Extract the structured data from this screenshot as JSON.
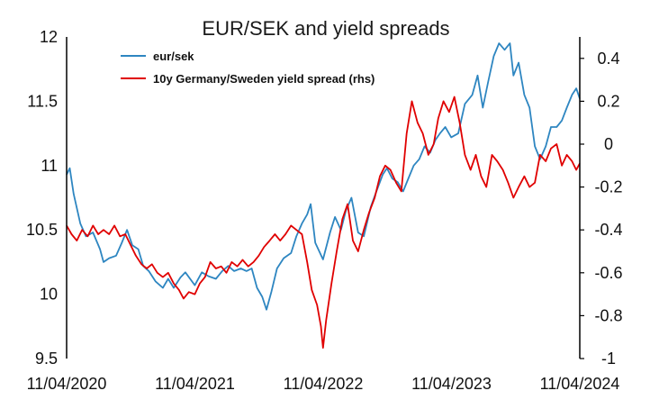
{
  "chart_data": {
    "type": "line",
    "title": "EUR/SEK and yield spreads",
    "xlabel": "",
    "ylabel": "",
    "x_ticks": [
      "11/04/2020",
      "11/04/2021",
      "11/04/2022",
      "11/04/2023",
      "11/04/2024"
    ],
    "x_range": [
      "2020-04-11",
      "2024-04-11"
    ],
    "y_left": {
      "ticks": [
        "9.5",
        "10",
        "10.5",
        "11",
        "11.5",
        "12"
      ],
      "ylim": [
        9.5,
        12
      ]
    },
    "y_right": {
      "ticks": [
        "-1",
        "-0.8",
        "-0.6",
        "-0.4",
        "-0.2",
        "0",
        "0.2",
        "0.4"
      ],
      "ylim": [
        -1,
        0.5
      ]
    },
    "grid": false,
    "legend_position": "top-left",
    "series": [
      {
        "name": "eur/sek",
        "axis": "left",
        "color": "#2E86C1",
        "points": [
          [
            "2020-04-11",
            10.93
          ],
          [
            "2020-04-20",
            10.98
          ],
          [
            "2020-05-01",
            10.78
          ],
          [
            "2020-05-20",
            10.55
          ],
          [
            "2020-06-05",
            10.45
          ],
          [
            "2020-06-25",
            10.48
          ],
          [
            "2020-07-15",
            10.35
          ],
          [
            "2020-07-25",
            10.25
          ],
          [
            "2020-08-10",
            10.28
          ],
          [
            "2020-08-30",
            10.3
          ],
          [
            "2020-09-15",
            10.4
          ],
          [
            "2020-09-30",
            10.5
          ],
          [
            "2020-10-15",
            10.38
          ],
          [
            "2020-11-01",
            10.35
          ],
          [
            "2020-11-15",
            10.22
          ],
          [
            "2020-12-01",
            10.18
          ],
          [
            "2020-12-20",
            10.1
          ],
          [
            "2021-01-10",
            10.05
          ],
          [
            "2021-01-25",
            10.12
          ],
          [
            "2021-02-10",
            10.05
          ],
          [
            "2021-03-01",
            10.13
          ],
          [
            "2021-03-15",
            10.17
          ],
          [
            "2021-04-11",
            10.07
          ],
          [
            "2021-05-01",
            10.17
          ],
          [
            "2021-05-20",
            10.14
          ],
          [
            "2021-06-10",
            10.12
          ],
          [
            "2021-06-28",
            10.18
          ],
          [
            "2021-07-15",
            10.22
          ],
          [
            "2021-08-01",
            10.18
          ],
          [
            "2021-08-20",
            10.2
          ],
          [
            "2021-09-05",
            10.18
          ],
          [
            "2021-09-20",
            10.2
          ],
          [
            "2021-10-05",
            10.05
          ],
          [
            "2021-10-20",
            9.98
          ],
          [
            "2021-11-01",
            9.88
          ],
          [
            "2021-11-15",
            10.02
          ],
          [
            "2021-12-01",
            10.2
          ],
          [
            "2021-12-20",
            10.28
          ],
          [
            "2022-01-10",
            10.32
          ],
          [
            "2022-01-25",
            10.45
          ],
          [
            "2022-02-10",
            10.55
          ],
          [
            "2022-02-25",
            10.62
          ],
          [
            "2022-03-07",
            10.7
          ],
          [
            "2022-03-20",
            10.4
          ],
          [
            "2022-04-11",
            10.27
          ],
          [
            "2022-05-01",
            10.48
          ],
          [
            "2022-05-15",
            10.6
          ],
          [
            "2022-06-01",
            10.5
          ],
          [
            "2022-06-15",
            10.65
          ],
          [
            "2022-07-01",
            10.75
          ],
          [
            "2022-07-20",
            10.48
          ],
          [
            "2022-08-05",
            10.45
          ],
          [
            "2022-08-25",
            10.68
          ],
          [
            "2022-09-10",
            10.8
          ],
          [
            "2022-09-28",
            10.93
          ],
          [
            "2022-10-10",
            10.98
          ],
          [
            "2022-10-25",
            10.9
          ],
          [
            "2022-11-10",
            10.87
          ],
          [
            "2022-11-25",
            10.8
          ],
          [
            "2022-12-10",
            10.9
          ],
          [
            "2022-12-25",
            11.0
          ],
          [
            "2023-01-10",
            11.05
          ],
          [
            "2023-01-25",
            11.15
          ],
          [
            "2023-02-10",
            11.1
          ],
          [
            "2023-02-25",
            11.2
          ],
          [
            "2023-03-10",
            11.25
          ],
          [
            "2023-03-25",
            11.3
          ],
          [
            "2023-04-11",
            11.22
          ],
          [
            "2023-05-01",
            11.25
          ],
          [
            "2023-05-20",
            11.48
          ],
          [
            "2023-06-10",
            11.55
          ],
          [
            "2023-06-25",
            11.7
          ],
          [
            "2023-07-10",
            11.45
          ],
          [
            "2023-07-25",
            11.65
          ],
          [
            "2023-08-10",
            11.85
          ],
          [
            "2023-08-25",
            11.95
          ],
          [
            "2023-09-10",
            11.9
          ],
          [
            "2023-09-25",
            11.95
          ],
          [
            "2023-10-05",
            11.7
          ],
          [
            "2023-10-20",
            11.8
          ],
          [
            "2023-11-05",
            11.55
          ],
          [
            "2023-11-20",
            11.45
          ],
          [
            "2023-12-05",
            11.15
          ],
          [
            "2023-12-20",
            11.05
          ],
          [
            "2024-01-05",
            11.15
          ],
          [
            "2024-01-20",
            11.3
          ],
          [
            "2024-02-05",
            11.3
          ],
          [
            "2024-02-20",
            11.35
          ],
          [
            "2024-03-05",
            11.45
          ],
          [
            "2024-03-20",
            11.55
          ],
          [
            "2024-04-01",
            11.6
          ],
          [
            "2024-04-11",
            11.52
          ]
        ]
      },
      {
        "name": "10y Germany/Sweden yield spread (rhs)",
        "axis": "right",
        "color": "#E00000",
        "points": [
          [
            "2020-04-11",
            -0.38
          ],
          [
            "2020-04-25",
            -0.42
          ],
          [
            "2020-05-10",
            -0.45
          ],
          [
            "2020-05-25",
            -0.4
          ],
          [
            "2020-06-10",
            -0.43
          ],
          [
            "2020-06-25",
            -0.38
          ],
          [
            "2020-07-10",
            -0.42
          ],
          [
            "2020-07-25",
            -0.4
          ],
          [
            "2020-08-10",
            -0.42
          ],
          [
            "2020-08-25",
            -0.38
          ],
          [
            "2020-09-10",
            -0.43
          ],
          [
            "2020-09-25",
            -0.42
          ],
          [
            "2020-10-10",
            -0.47
          ],
          [
            "2020-10-25",
            -0.52
          ],
          [
            "2020-11-10",
            -0.56
          ],
          [
            "2020-11-25",
            -0.58
          ],
          [
            "2020-12-10",
            -0.56
          ],
          [
            "2020-12-25",
            -0.6
          ],
          [
            "2021-01-10",
            -0.62
          ],
          [
            "2021-01-25",
            -0.6
          ],
          [
            "2021-02-10",
            -0.65
          ],
          [
            "2021-02-25",
            -0.68
          ],
          [
            "2021-03-10",
            -0.72
          ],
          [
            "2021-03-25",
            -0.69
          ],
          [
            "2021-04-11",
            -0.7
          ],
          [
            "2021-04-25",
            -0.65
          ],
          [
            "2021-05-10",
            -0.62
          ],
          [
            "2021-05-25",
            -0.55
          ],
          [
            "2021-06-10",
            -0.58
          ],
          [
            "2021-06-25",
            -0.57
          ],
          [
            "2021-07-10",
            -0.6
          ],
          [
            "2021-07-25",
            -0.55
          ],
          [
            "2021-08-10",
            -0.57
          ],
          [
            "2021-08-25",
            -0.54
          ],
          [
            "2021-09-10",
            -0.57
          ],
          [
            "2021-09-25",
            -0.55
          ],
          [
            "2021-10-10",
            -0.52
          ],
          [
            "2021-10-25",
            -0.48
          ],
          [
            "2021-11-10",
            -0.45
          ],
          [
            "2021-11-25",
            -0.42
          ],
          [
            "2021-12-10",
            -0.45
          ],
          [
            "2021-12-25",
            -0.42
          ],
          [
            "2022-01-10",
            -0.38
          ],
          [
            "2022-01-25",
            -0.4
          ],
          [
            "2022-02-10",
            -0.42
          ],
          [
            "2022-02-25",
            -0.55
          ],
          [
            "2022-03-10",
            -0.68
          ],
          [
            "2022-03-25",
            -0.75
          ],
          [
            "2022-04-05",
            -0.85
          ],
          [
            "2022-04-11",
            -0.95
          ],
          [
            "2022-04-20",
            -0.82
          ],
          [
            "2022-05-05",
            -0.65
          ],
          [
            "2022-05-20",
            -0.5
          ],
          [
            "2022-06-05",
            -0.35
          ],
          [
            "2022-06-20",
            -0.28
          ],
          [
            "2022-07-05",
            -0.45
          ],
          [
            "2022-07-20",
            -0.5
          ],
          [
            "2022-08-05",
            -0.4
          ],
          [
            "2022-08-20",
            -0.32
          ],
          [
            "2022-09-05",
            -0.25
          ],
          [
            "2022-09-20",
            -0.15
          ],
          [
            "2022-10-05",
            -0.1
          ],
          [
            "2022-10-20",
            -0.12
          ],
          [
            "2022-11-05",
            -0.18
          ],
          [
            "2022-11-20",
            -0.22
          ],
          [
            "2022-12-05",
            0.05
          ],
          [
            "2022-12-20",
            0.2
          ],
          [
            "2023-01-05",
            0.1
          ],
          [
            "2023-01-20",
            0.05
          ],
          [
            "2023-02-05",
            -0.05
          ],
          [
            "2023-02-20",
            0.0
          ],
          [
            "2023-03-05",
            0.12
          ],
          [
            "2023-03-20",
            0.2
          ],
          [
            "2023-04-05",
            0.15
          ],
          [
            "2023-04-20",
            0.22
          ],
          [
            "2023-05-05",
            0.1
          ],
          [
            "2023-05-20",
            -0.05
          ],
          [
            "2023-06-05",
            -0.12
          ],
          [
            "2023-06-20",
            -0.05
          ],
          [
            "2023-07-05",
            -0.15
          ],
          [
            "2023-07-20",
            -0.2
          ],
          [
            "2023-08-05",
            -0.05
          ],
          [
            "2023-08-20",
            -0.08
          ],
          [
            "2023-09-05",
            -0.12
          ],
          [
            "2023-09-20",
            -0.18
          ],
          [
            "2023-10-05",
            -0.25
          ],
          [
            "2023-10-20",
            -0.2
          ],
          [
            "2023-11-05",
            -0.15
          ],
          [
            "2023-11-20",
            -0.2
          ],
          [
            "2023-12-05",
            -0.18
          ],
          [
            "2023-12-20",
            -0.05
          ],
          [
            "2024-01-05",
            -0.08
          ],
          [
            "2024-01-20",
            -0.02
          ],
          [
            "2024-02-05",
            0.0
          ],
          [
            "2024-02-20",
            -0.1
          ],
          [
            "2024-03-05",
            -0.05
          ],
          [
            "2024-03-20",
            -0.08
          ],
          [
            "2024-04-01",
            -0.12
          ],
          [
            "2024-04-11",
            -0.09
          ]
        ]
      }
    ]
  }
}
